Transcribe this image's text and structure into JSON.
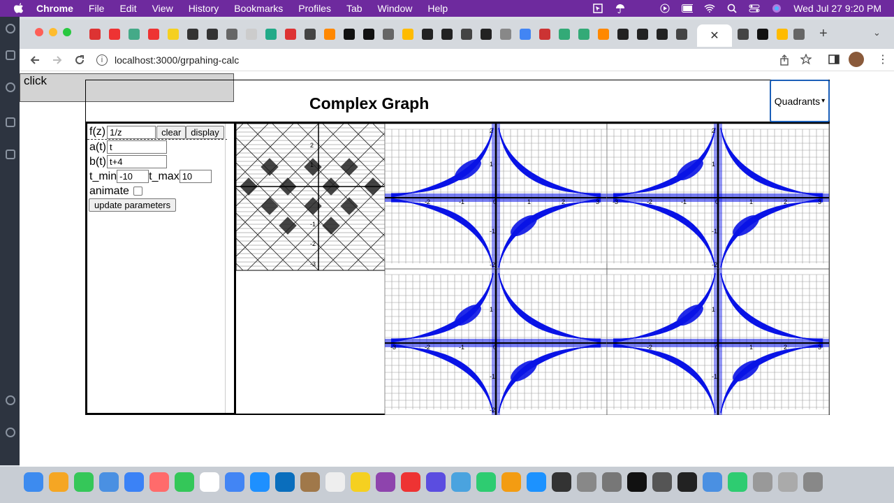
{
  "menubar": {
    "app": "Chrome",
    "items": [
      "File",
      "Edit",
      "View",
      "History",
      "Bookmarks",
      "Profiles",
      "Tab",
      "Window",
      "Help"
    ],
    "datetime": "Wed Jul 27  9:20 PM"
  },
  "browser": {
    "url": "localhost:3000/grpahing-calc"
  },
  "page": {
    "click_label": "click",
    "title": "Complex Graph",
    "view_select": "Quadrants",
    "fz_label": "f(z)",
    "fz_value": "1/z",
    "clear_label": "clear",
    "display_label": "display",
    "a_label": "a(t)",
    "a_value": "t",
    "b_label": "b(t)",
    "b_value": "t+4",
    "tmin_label": "t_min",
    "tmin_value": "-10",
    "tmax_label": "t_max",
    "tmax_value": "10",
    "animate_label": "animate",
    "update_label": "update parameters"
  },
  "graph_ticks": {
    "domain_y": [
      "2",
      "1",
      "-1",
      "-2",
      "-3"
    ],
    "q1_x": [
      "-2",
      "-1",
      "0",
      "1",
      "2",
      "3"
    ],
    "q1_y": [
      "2",
      "1",
      "-1",
      "-2"
    ],
    "q2_x": [
      "-3",
      "-2",
      "-1",
      "0",
      "1",
      "2",
      "3"
    ],
    "q2_y": [
      "2",
      "1",
      "-1",
      "-2"
    ],
    "q3_x": [
      "-3",
      "-2",
      "-1",
      "0"
    ],
    "q3_y": [
      "1",
      "-1",
      "-2"
    ],
    "q4_x": [
      "-2",
      "0",
      "1",
      "2",
      "3"
    ],
    "q4_y": [
      "1",
      "-1"
    ]
  },
  "colors": {
    "curve": "#0a14e6",
    "menubar": "#6e2a9e",
    "select_border": "#1b5fb8"
  }
}
